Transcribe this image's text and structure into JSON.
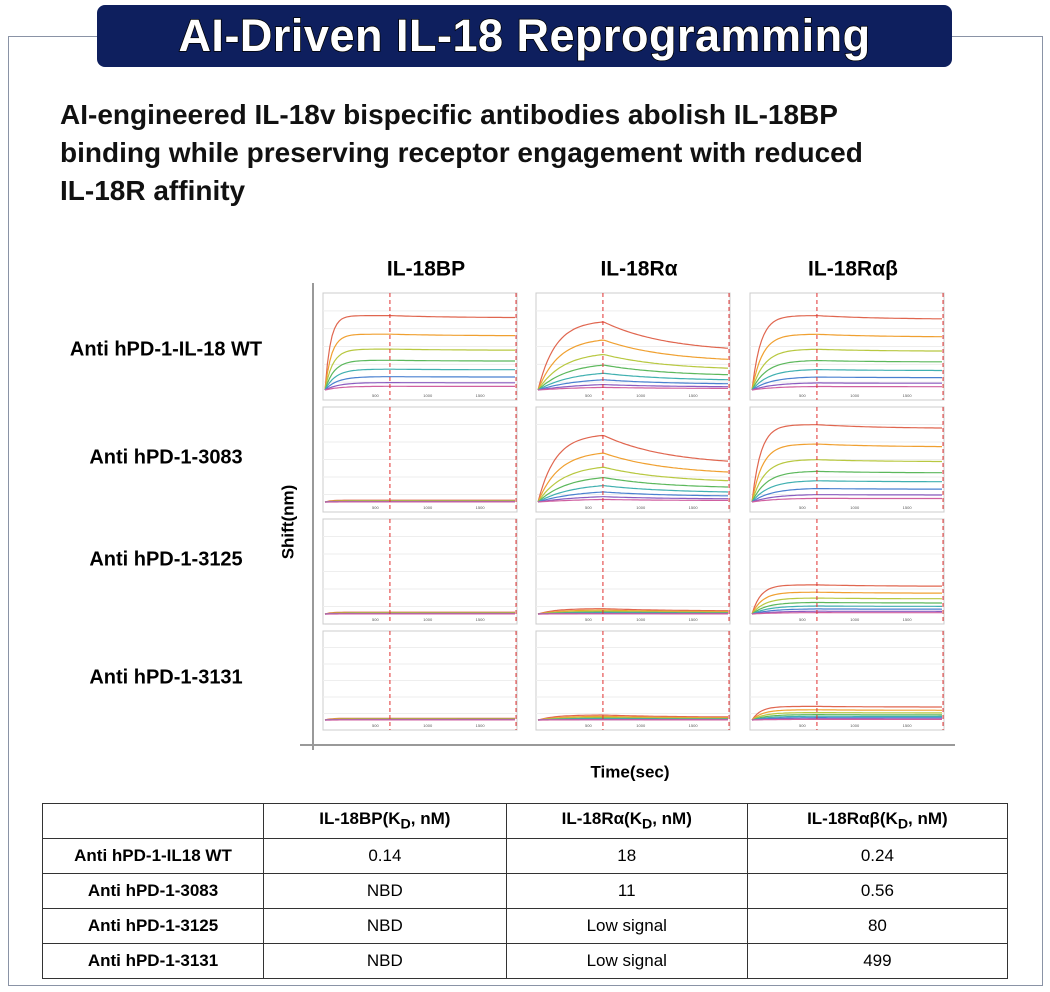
{
  "header": {
    "title": "AI-Driven IL-18 Reprogramming"
  },
  "subtitle": [
    "AI-engineered IL-18v bispecific antibodies abolish IL-18BP",
    "binding while preserving receptor engagement with reduced",
    "IL-18R affinity"
  ],
  "figure": {
    "columns": [
      "IL-18BP",
      "IL-18Rα",
      "IL-18Rαβ"
    ],
    "rows": [
      "Anti hPD-1-IL-18 WT",
      "Anti hPD-1-3083",
      "Anti hPD-1-3125",
      "Anti hPD-1-3131"
    ],
    "y_label": "Shift(nm)",
    "x_label": "Time(sec)",
    "panel_ticks": [
      "500",
      "1000",
      "1500"
    ]
  },
  "table": {
    "header": [
      [
        "IL-18BP(K",
        "D",
        ", nM)"
      ],
      [
        "IL-18Rα(K",
        "D",
        ", nM)"
      ],
      [
        "IL-18Rαβ(K",
        "D",
        ", nM)"
      ]
    ],
    "rows": [
      [
        "Anti hPD-1-IL18 WT",
        "0.14",
        "18",
        "0.24"
      ],
      [
        "Anti hPD-1-3083",
        "NBD",
        "11",
        "0.56"
      ],
      [
        "Anti hPD-1-3125",
        "NBD",
        "Low signal",
        "80"
      ],
      [
        "Anti hPD-1-3131",
        "NBD",
        "Low signal",
        "499"
      ]
    ]
  }
}
